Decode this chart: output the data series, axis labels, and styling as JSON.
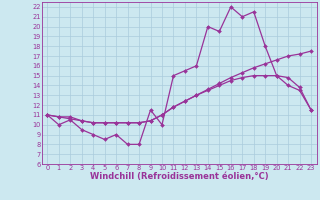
{
  "xlabel": "Windchill (Refroidissement éolien,°C)",
  "x": [
    0,
    1,
    2,
    3,
    4,
    5,
    6,
    7,
    8,
    9,
    10,
    11,
    12,
    13,
    14,
    15,
    16,
    17,
    18,
    19,
    20,
    21,
    22,
    23
  ],
  "line1": [
    11,
    10,
    10.5,
    9.5,
    9,
    8.5,
    9,
    8,
    8,
    11.5,
    10,
    15,
    15.5,
    16,
    20,
    19.5,
    22,
    21,
    21.5,
    18,
    15,
    14,
    13.5,
    11.5
  ],
  "line2": [
    11,
    10.8,
    10.6,
    10.4,
    10.2,
    10.2,
    10.2,
    10.2,
    10.2,
    10.4,
    11,
    11.8,
    12.4,
    13,
    13.6,
    14.2,
    14.8,
    15.3,
    15.8,
    16.2,
    16.6,
    17.0,
    17.2,
    17.5
  ],
  "line3": [
    11,
    10.8,
    10.8,
    10.4,
    10.2,
    10.2,
    10.2,
    10.2,
    10.2,
    10.4,
    11,
    11.8,
    12.4,
    13,
    13.5,
    14,
    14.5,
    14.8,
    15,
    15.0,
    15.0,
    14.8,
    13.8,
    11.5
  ],
  "line_color": "#993399",
  "background_color": "#cce8f0",
  "grid_color": "#aaccdd",
  "ylim": [
    6,
    22.5
  ],
  "xlim": [
    -0.5,
    23.5
  ],
  "yticks": [
    6,
    7,
    8,
    9,
    10,
    11,
    12,
    13,
    14,
    15,
    16,
    17,
    18,
    19,
    20,
    21,
    22
  ],
  "xticks": [
    0,
    1,
    2,
    3,
    4,
    5,
    6,
    7,
    8,
    9,
    10,
    11,
    12,
    13,
    14,
    15,
    16,
    17,
    18,
    19,
    20,
    21,
    22,
    23
  ],
  "marker": "D",
  "markersize": 2.0,
  "linewidth": 0.9,
  "tick_fontsize": 4.8,
  "label_fontsize": 6.0
}
